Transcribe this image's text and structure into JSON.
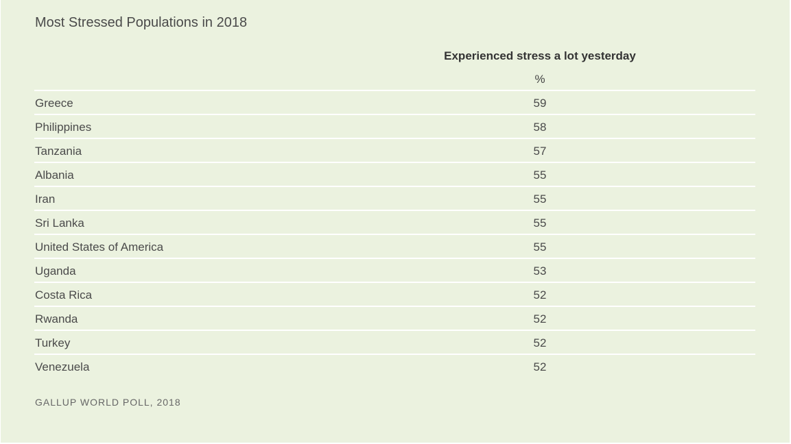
{
  "title": "Most Stressed Populations in 2018",
  "column_header": "Experienced stress a lot yesterday",
  "column_unit": "%",
  "source": "GALLUP WORLD POLL, 2018",
  "colors": {
    "background": "#ebf2df",
    "row_divider": "#ffffff",
    "text": "#4a4a4a"
  },
  "chart_data": {
    "type": "table",
    "title": "Most Stressed Populations in 2018",
    "columns": [
      "",
      "Experienced stress a lot yesterday"
    ],
    "unit": "%",
    "rows": [
      {
        "country": "Greece",
        "value": "59"
      },
      {
        "country": "Philippines",
        "value": "58"
      },
      {
        "country": "Tanzania",
        "value": "57"
      },
      {
        "country": "Albania",
        "value": "55"
      },
      {
        "country": "Iran",
        "value": "55"
      },
      {
        "country": "Sri Lanka",
        "value": "55"
      },
      {
        "country": "United States of America",
        "value": "55"
      },
      {
        "country": "Uganda",
        "value": "53"
      },
      {
        "country": "Costa Rica",
        "value": "52"
      },
      {
        "country": "Rwanda",
        "value": "52"
      },
      {
        "country": "Turkey",
        "value": "52"
      },
      {
        "country": "Venezuela",
        "value": "52"
      }
    ]
  }
}
